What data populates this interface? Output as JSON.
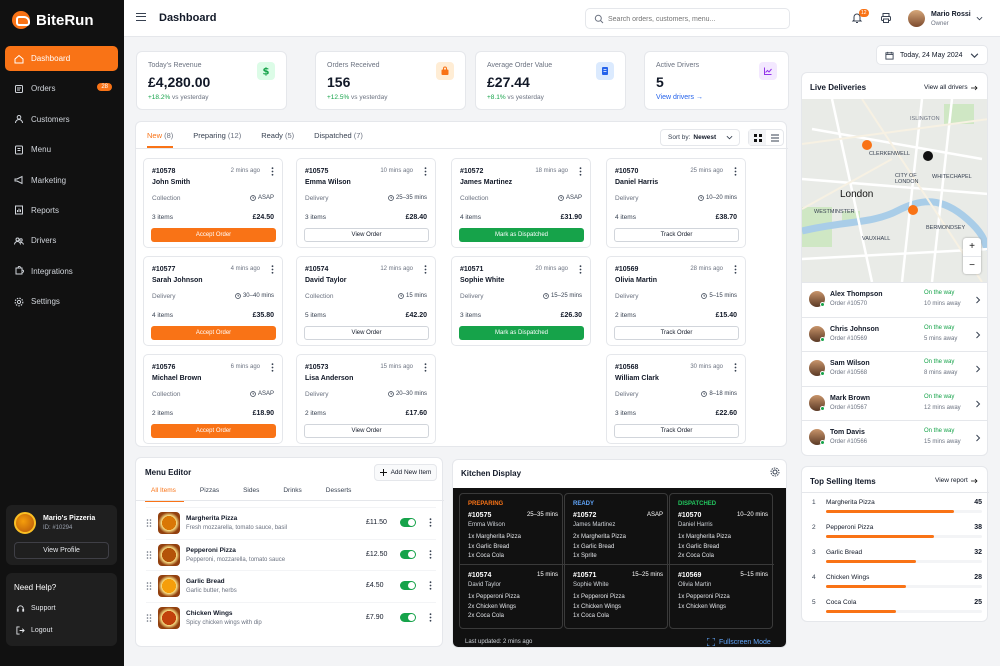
{
  "brand": {
    "name": "BiteRun",
    "accent": "#f97316"
  },
  "nav": [
    {
      "key": "dashboard",
      "label": "Dashboard",
      "icon": "home-icon"
    },
    {
      "key": "orders",
      "label": "Orders",
      "icon": "orders-icon",
      "count": "28"
    },
    {
      "key": "customers",
      "label": "Customers",
      "icon": "user-icon"
    },
    {
      "key": "menu",
      "label": "Menu",
      "icon": "menu-book-icon"
    },
    {
      "key": "marketing",
      "label": "Marketing",
      "icon": "megaphone-icon"
    },
    {
      "key": "reports",
      "label": "Reports",
      "icon": "report-icon"
    },
    {
      "key": "drivers",
      "label": "Drivers",
      "icon": "drivers-icon"
    },
    {
      "key": "integrations",
      "label": "Integrations",
      "icon": "puzzle-icon"
    },
    {
      "key": "settings",
      "label": "Settings",
      "icon": "gear-icon"
    }
  ],
  "restaurant": {
    "name": "Mario's Pizzeria",
    "id": "ID: #10294",
    "view_profile": "View Profile"
  },
  "help": {
    "title": "Need Help?",
    "support": "Support",
    "logout": "Logout"
  },
  "header": {
    "title": "Dashboard",
    "search_placeholder": "Search orders, customers, menu...",
    "notification_count": "12",
    "user_name": "Mario Rossi",
    "user_role": "Owner"
  },
  "stats": [
    {
      "label": "Today's Revenue",
      "value": "£4,280.00",
      "delta": "+18.2%",
      "suffix": "vs yesterday",
      "icon": "dollar-icon",
      "color": "#16a34a",
      "bg": "#dcfce7"
    },
    {
      "label": "Orders Received",
      "value": "156",
      "delta": "+12.5%",
      "suffix": "vs yesterday",
      "icon": "bag-icon",
      "color": "#f97316",
      "bg": "#ffedd5"
    },
    {
      "label": "Average Order Value",
      "value": "£27.44",
      "delta": "+8.1%",
      "suffix": "vs yesterday",
      "icon": "receipt-icon",
      "color": "#2563eb",
      "bg": "#dbeafe"
    },
    {
      "label": "Active Drivers",
      "value": "5",
      "link": "View drivers",
      "icon": "chart-icon",
      "color": "#9333ea",
      "bg": "#f3e8ff"
    }
  ],
  "date": "Today, 24 May 2024",
  "order_tabs": [
    {
      "label": "New",
      "count": "(8)"
    },
    {
      "label": "Preparing",
      "count": "(12)"
    },
    {
      "label": "Ready",
      "count": "(5)"
    },
    {
      "label": "Dispatched",
      "count": "(7)"
    }
  ],
  "sort": {
    "label": "Sort by:",
    "value": "Newest"
  },
  "orders": [
    {
      "id": "#10578",
      "time": "2 mins ago",
      "customer": "John Smith",
      "type": "Collection",
      "eta": "ASAP",
      "items": "3 items",
      "price": "£24.50",
      "action": "Accept Order",
      "style": "accept",
      "col": 0,
      "row": 0
    },
    {
      "id": "#10577",
      "time": "4 mins ago",
      "customer": "Sarah Johnson",
      "type": "Delivery",
      "eta": "30–40 mins",
      "items": "4 items",
      "price": "£35.80",
      "action": "Accept Order",
      "style": "accept",
      "col": 0,
      "row": 1
    },
    {
      "id": "#10576",
      "time": "6 mins ago",
      "customer": "Michael Brown",
      "type": "Collection",
      "eta": "ASAP",
      "items": "2 items",
      "price": "£18.90",
      "action": "Accept Order",
      "style": "accept",
      "col": 0,
      "row": 2
    },
    {
      "id": "#10575",
      "time": "10 mins ago",
      "customer": "Emma Wilson",
      "type": "Delivery",
      "eta": "25–35 mins",
      "items": "3 items",
      "price": "£28.40",
      "action": "View Order",
      "style": "outline",
      "col": 1,
      "row": 0
    },
    {
      "id": "#10574",
      "time": "12 mins ago",
      "customer": "David Taylor",
      "type": "Collection",
      "eta": "15 mins",
      "items": "5 items",
      "price": "£42.20",
      "action": "View Order",
      "style": "outline",
      "col": 1,
      "row": 1
    },
    {
      "id": "#10573",
      "time": "15 mins ago",
      "customer": "Lisa Anderson",
      "type": "Delivery",
      "eta": "20–30 mins",
      "items": "2 items",
      "price": "£17.60",
      "action": "View Order",
      "style": "outline",
      "col": 1,
      "row": 2
    },
    {
      "id": "#10572",
      "time": "18 mins ago",
      "customer": "James Martinez",
      "type": "Collection",
      "eta": "ASAP",
      "items": "4 items",
      "price": "£31.90",
      "action": "Mark as Dispatched",
      "style": "dispatch",
      "col": 2,
      "row": 0
    },
    {
      "id": "#10571",
      "time": "20 mins ago",
      "customer": "Sophie White",
      "type": "Delivery",
      "eta": "15–25 mins",
      "items": "3 items",
      "price": "£26.30",
      "action": "Mark as Dispatched",
      "style": "dispatch",
      "col": 2,
      "row": 1
    },
    {
      "id": "#10570",
      "time": "25 mins ago",
      "customer": "Daniel Harris",
      "type": "Delivery",
      "eta": "10–20 mins",
      "items": "4 items",
      "price": "£38.70",
      "action": "Track Order",
      "style": "outline",
      "col": 3,
      "row": 0
    },
    {
      "id": "#10569",
      "time": "28 mins ago",
      "customer": "Olivia Martin",
      "type": "Delivery",
      "eta": "5–15 mins",
      "items": "2 items",
      "price": "£15.40",
      "action": "Track Order",
      "style": "outline",
      "col": 3,
      "row": 1
    },
    {
      "id": "#10568",
      "time": "30 mins ago",
      "customer": "William Clark",
      "type": "Delivery",
      "eta": "8–18 mins",
      "items": "3 items",
      "price": "£22.60",
      "action": "Track Order",
      "style": "outline",
      "col": 3,
      "row": 2
    }
  ],
  "menu_editor": {
    "title": "Menu Editor",
    "add_label": "Add New Item",
    "tabs": [
      "All Items",
      "Pizzas",
      "Sides",
      "Drinks",
      "Desserts"
    ],
    "items": [
      {
        "name": "Margherita Pizza",
        "desc": "Fresh mozzarella, tomato sauce, basil",
        "price": "£11.50",
        "thumb": "#d97706"
      },
      {
        "name": "Pepperoni Pizza",
        "desc": "Pepperoni, mozzarella, tomato sauce",
        "price": "£12.50",
        "thumb": "#b45309"
      },
      {
        "name": "Garlic Bread",
        "desc": "Garlic butter, herbs",
        "price": "£4.50",
        "thumb": "#f59e0b"
      },
      {
        "name": "Chicken Wings",
        "desc": "Spicy chicken wings with dip",
        "price": "£7.90",
        "thumb": "#c2410c"
      }
    ]
  },
  "kitchen": {
    "title": "Kitchen Display",
    "updated": "Last updated: 2 mins ago",
    "fullscreen": "Fullscreen Mode",
    "columns": [
      {
        "label": "PREPARING",
        "color": "#f97316",
        "tickets": [
          {
            "id": "#10575",
            "time": "25–35 mins",
            "name": "Emma Wilson",
            "lines": [
              "1x Margherita Pizza",
              "1x Garlic Bread",
              "1x Coca Cola"
            ]
          },
          {
            "id": "#10574",
            "time": "15 mins",
            "name": "David Taylor",
            "lines": [
              "1x Pepperoni Pizza",
              "2x Chicken Wings",
              "2x Coca Cola"
            ]
          }
        ]
      },
      {
        "label": "READY",
        "color": "#60a5fa",
        "tickets": [
          {
            "id": "#10572",
            "time": "ASAP",
            "name": "James Martinez",
            "lines": [
              "2x Margherita Pizza",
              "1x Garlic Bread",
              "1x Sprite"
            ]
          },
          {
            "id": "#10571",
            "time": "15–25 mins",
            "name": "Sophie White",
            "lines": [
              "1x Pepperoni Pizza",
              "1x Chicken Wings",
              "1x Coca Cola"
            ]
          }
        ]
      },
      {
        "label": "DISPATCHED",
        "color": "#22c55e",
        "tickets": [
          {
            "id": "#10570",
            "time": "10–20 mins",
            "name": "Daniel Harris",
            "lines": [
              "1x Margherita Pizza",
              "1x Garlic Bread",
              "2x Coca Cola"
            ]
          },
          {
            "id": "#10569",
            "time": "5–15 mins",
            "name": "Olivia Martin",
            "lines": [
              "1x Pepperoni Pizza",
              "1x Chicken Wings"
            ]
          }
        ]
      }
    ]
  },
  "live": {
    "title": "Live Deliveries",
    "view_all": "View all drivers",
    "map_labels": [
      "ISLINGTON",
      "CLERKENWELL",
      "CITY OF LONDON",
      "WHITECHAPEL",
      "London",
      "WESTMINSTER",
      "VAUXHALL",
      "BERMONDSEY"
    ],
    "drivers": [
      {
        "name": "Alex Thompson",
        "order": "Order #10570",
        "status": "On the way",
        "eta": "10 mins away"
      },
      {
        "name": "Chris Johnson",
        "order": "Order #10569",
        "status": "On the way",
        "eta": "5 mins away"
      },
      {
        "name": "Sam Wilson",
        "order": "Order #10568",
        "status": "On the way",
        "eta": "8 mins away"
      },
      {
        "name": "Mark Brown",
        "order": "Order #10567",
        "status": "On the way",
        "eta": "12 mins away"
      },
      {
        "name": "Tom Davis",
        "order": "Order #10566",
        "status": "On the way",
        "eta": "15 mins away"
      }
    ]
  },
  "top_selling": {
    "title": "Top Selling Items",
    "view_report": "View report",
    "items": [
      {
        "rank": "1",
        "name": "Margherita Pizza",
        "qty": "45",
        "share": 0.82
      },
      {
        "rank": "2",
        "name": "Pepperoni Pizza",
        "qty": "38",
        "share": 0.69
      },
      {
        "rank": "3",
        "name": "Garlic Bread",
        "qty": "32",
        "share": 0.58
      },
      {
        "rank": "4",
        "name": "Chicken Wings",
        "qty": "28",
        "share": 0.51
      },
      {
        "rank": "5",
        "name": "Coca Cola",
        "qty": "25",
        "share": 0.45
      }
    ]
  }
}
